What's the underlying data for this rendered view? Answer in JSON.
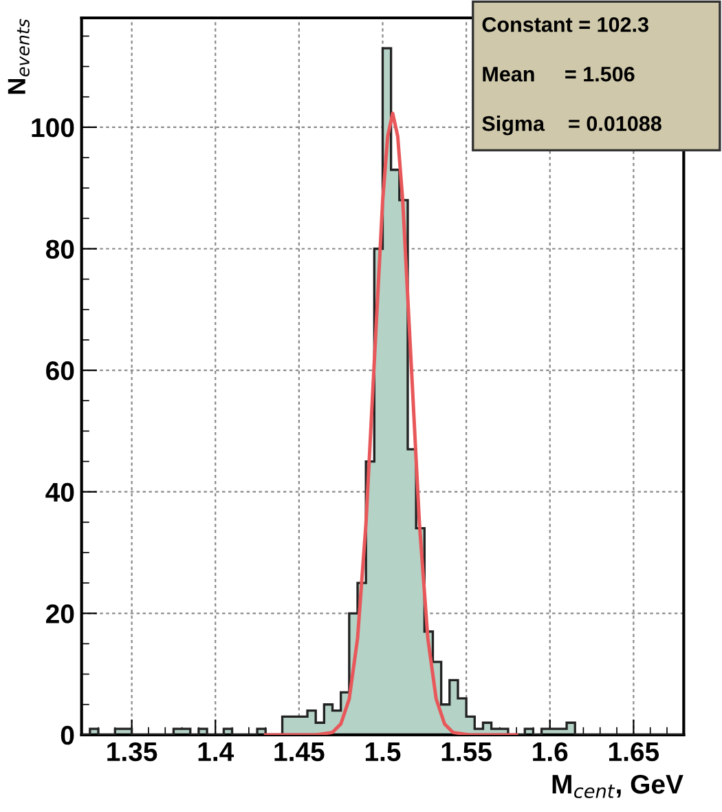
{
  "chart_data": {
    "type": "histogram",
    "xlabel": "M$_{cent}$, GeV",
    "ylabel": "N$_{events}$",
    "xlim": [
      1.32,
      1.68
    ],
    "xticks": [
      1.35,
      1.4,
      1.45,
      1.5,
      1.55,
      1.6,
      1.65
    ],
    "ylim": [
      0,
      118
    ],
    "yticks": [
      0,
      20,
      40,
      60,
      80,
      100
    ],
    "grid": true,
    "annotations": [
      "Constant = 102.3",
      "Mean     = 1.506",
      "Sigma    = 0.01088"
    ],
    "series": [
      {
        "color": "#b4d2c6",
        "bins": [
          1.32,
          1.325,
          1.33,
          1.335,
          1.34,
          1.345,
          1.35,
          1.355,
          1.36,
          1.365,
          1.37,
          1.375,
          1.38,
          1.385,
          1.39,
          1.395,
          1.4,
          1.405,
          1.41,
          1.415,
          1.42,
          1.425,
          1.43,
          1.435,
          1.44,
          1.445,
          1.45,
          1.455,
          1.46,
          1.465,
          1.47,
          1.475,
          1.48,
          1.485,
          1.49,
          1.495,
          1.5,
          1.505,
          1.51,
          1.515,
          1.52,
          1.525,
          1.53,
          1.535,
          1.54,
          1.545,
          1.55,
          1.555,
          1.56,
          1.565,
          1.57,
          1.575,
          1.58,
          1.585,
          1.59,
          1.595,
          1.6,
          1.605,
          1.61,
          1.615,
          1.62,
          1.625,
          1.63,
          1.635,
          1.64,
          1.645,
          1.65,
          1.655,
          1.66,
          1.665,
          1.67,
          1.675,
          1.68
        ],
        "values": [
          0,
          1,
          0,
          0,
          1,
          1,
          0,
          0,
          0,
          0,
          0,
          1,
          1,
          0,
          1,
          0,
          0,
          1,
          0,
          0,
          0,
          1,
          0,
          0,
          3,
          3,
          3,
          4,
          2,
          5,
          4,
          7,
          20,
          25,
          45,
          80,
          113,
          93,
          88,
          47,
          34,
          17,
          12,
          5,
          9,
          6,
          3,
          1,
          2,
          1,
          1,
          0,
          0,
          1,
          0,
          1,
          1,
          1,
          2,
          0,
          0,
          0,
          0,
          0,
          0,
          0,
          0,
          0,
          0,
          0,
          0,
          0
        ]
      },
      {
        "type": "line",
        "color": "#e8585a",
        "x": [
          1.43,
          1.45,
          1.46,
          1.47,
          1.475,
          1.48,
          1.485,
          1.49,
          1.495,
          1.5,
          1.503,
          1.506,
          1.509,
          1.512,
          1.517,
          1.522,
          1.527,
          1.532,
          1.537,
          1.542,
          1.552,
          1.58
        ],
        "values": [
          0,
          0,
          0.0,
          0.4,
          1.8,
          5.9,
          15.9,
          34.7,
          61.4,
          87.9,
          98.5,
          102.3,
          98.5,
          87.9,
          61.4,
          34.7,
          15.9,
          5.9,
          1.8,
          0.4,
          0.0,
          0
        ]
      }
    ]
  }
}
